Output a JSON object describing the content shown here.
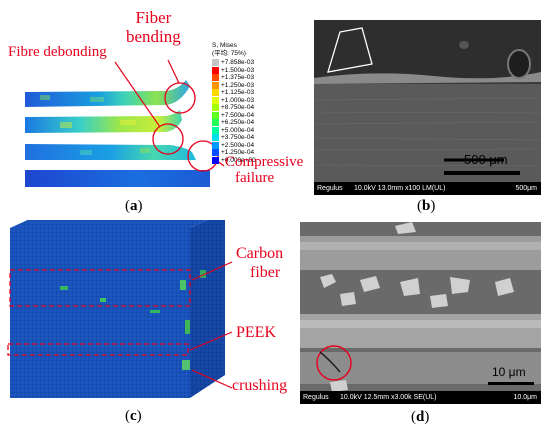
{
  "panel_a": {
    "label": "a",
    "legend_title": "S, Mises",
    "legend_subtitle": "(平均: 75%)",
    "legend_values": [
      "+7.858e-03",
      "+1.500e-03",
      "+1.375e-03",
      "+1.250e-03",
      "+1.125e-03",
      "+1.000e-03",
      "+8.750e-04",
      "+7.500e-04",
      "+6.250e-04",
      "+5.000e-04",
      "+3.750e-04",
      "+2.500e-04",
      "+1.250e-04",
      "+0.000e+00"
    ],
    "legend_colors": [
      "#c4c4c4",
      "#ff0000",
      "#ff4a00",
      "#ff9400",
      "#ffd600",
      "#e0ff00",
      "#a6ff00",
      "#5dff20",
      "#20ff5a",
      "#00ffa0",
      "#00e0e6",
      "#009aff",
      "#0050ff",
      "#0000ff"
    ],
    "annotations": {
      "fiber_bending": [
        "Fiber",
        "bending"
      ],
      "fibre_debonding": "Fibre debonding",
      "compressive_failure": [
        "Compressive",
        "failure"
      ]
    }
  },
  "panel_b": {
    "label": "b",
    "scale_bar": "500 μm",
    "info_bar": {
      "brand": "Regulus",
      "settings": "10.0kV 13.0mm x100 LM(UL)",
      "scale": "500μm"
    }
  },
  "panel_c": {
    "label": "c",
    "annotations": {
      "carbon_fiber": [
        "Carbon",
        "fiber"
      ],
      "peek": "PEEK",
      "crushing": "crushing"
    }
  },
  "panel_d": {
    "label": "d",
    "scale_bar": "10 μm",
    "info_bar": {
      "brand": "Regulus",
      "settings": "10.0kV 12.5mm x3.00k SE(UL)",
      "scale": "10.0μm"
    }
  }
}
